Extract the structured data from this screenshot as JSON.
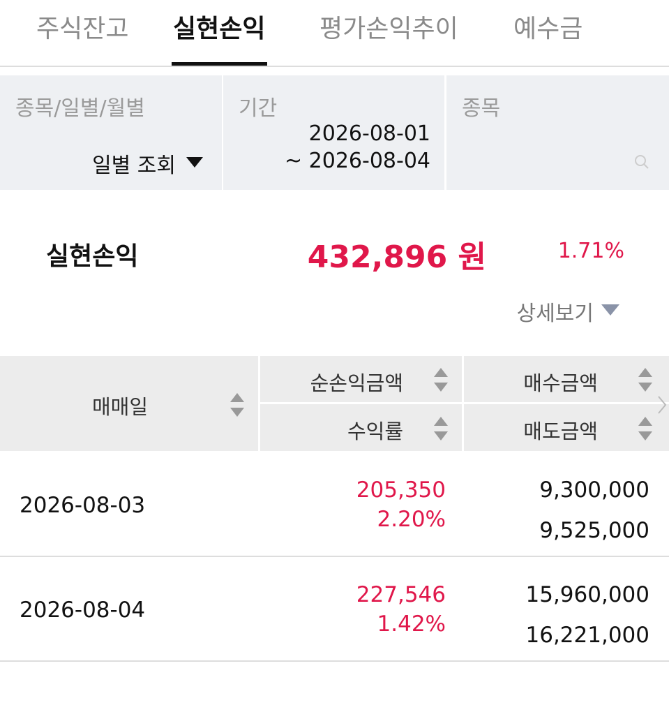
{
  "tabs": [
    "주식잔고",
    "실현손익",
    "평가손익추이",
    "예수금"
  ],
  "filters": {
    "type": {
      "label": "종목/일별/월별",
      "value": "일별 조회"
    },
    "period": {
      "label": "기간",
      "start": "2026-08-01",
      "end": "~ 2026-08-04"
    },
    "stock": {
      "label": "종목"
    }
  },
  "summary": {
    "label": "실현손익",
    "amount": "432,896 원",
    "rate": "1.71%",
    "detail": "상세보기"
  },
  "table": {
    "headers": {
      "date": "매매일",
      "profit": "순손익금액",
      "rate": "수익률",
      "buy": "매수금액",
      "sell": "매도금액"
    },
    "rows": [
      {
        "date": "2026-08-03",
        "profit": "205,350",
        "rate": "2.20%",
        "buy": "9,300,000",
        "sell": "9,525,000"
      },
      {
        "date": "2026-08-04",
        "profit": "227,546",
        "rate": "1.42%",
        "buy": "15,960,000",
        "sell": "16,221,000"
      }
    ]
  }
}
